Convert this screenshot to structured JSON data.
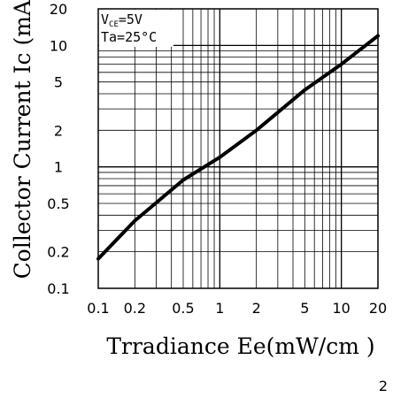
{
  "chart_data": {
    "type": "line",
    "xscale": "log",
    "yscale": "log",
    "xlim": [
      0.1,
      20
    ],
    "ylim": [
      0.1,
      20
    ],
    "grid": true,
    "xlabel": "Trradiance Ee(mW/cm )",
    "xlabel_superscript": "2",
    "ylabel": "Collector Current Ic (mA",
    "xticks": [
      {
        "value": 0.1,
        "label": "0.1"
      },
      {
        "value": 0.2,
        "label": "0.2"
      },
      {
        "value": 0.5,
        "label": "0.5"
      },
      {
        "value": 1,
        "label": "1"
      },
      {
        "value": 2,
        "label": "2"
      },
      {
        "value": 5,
        "label": "5"
      },
      {
        "value": 10,
        "label": "10"
      },
      {
        "value": 20,
        "label": "20"
      }
    ],
    "yticks": [
      {
        "value": 0.1,
        "label": "0.1"
      },
      {
        "value": 0.2,
        "label": "0.2"
      },
      {
        "value": 0.5,
        "label": "0.5"
      },
      {
        "value": 1,
        "label": "1"
      },
      {
        "value": 2,
        "label": "2"
      },
      {
        "value": 5,
        "label": "5"
      },
      {
        "value": 10,
        "label": "10"
      },
      {
        "value": 20,
        "label": "20"
      }
    ],
    "conditions": {
      "vce_prefix": "V",
      "vce_subscript": "CE",
      "vce_value": "=5V",
      "ta": "Ta=25°C"
    },
    "series": [
      {
        "x": [
          0.1,
          0.2,
          0.5,
          1,
          2,
          5,
          10,
          20
        ],
        "y": [
          0.175,
          0.36,
          0.78,
          1.2,
          2.0,
          4.3,
          7.0,
          12.0
        ]
      }
    ]
  }
}
